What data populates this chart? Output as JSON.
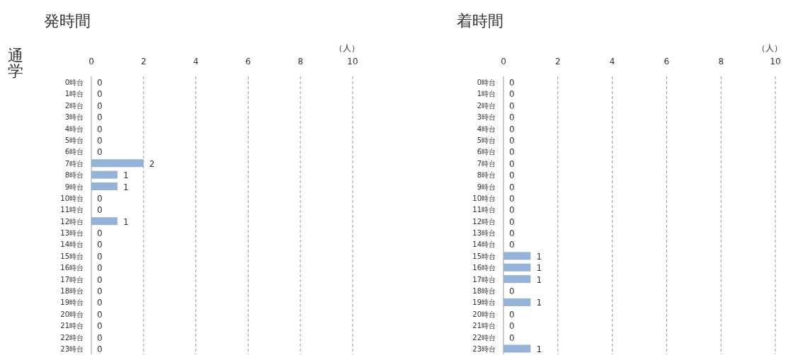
{
  "chart_data": [
    {
      "type": "bar",
      "orientation": "horizontal",
      "title": "発時間",
      "ylabel": "通学",
      "xlabel": "（人）",
      "categories": [
        "0時台",
        "1時台",
        "2時台",
        "3時台",
        "4時台",
        "5時台",
        "6時台",
        "7時台",
        "8時台",
        "9時台",
        "10時台",
        "11時台",
        "12時台",
        "13時台",
        "14時台",
        "15時台",
        "16時台",
        "17時台",
        "18時台",
        "19時台",
        "20時台",
        "21時台",
        "22時台",
        "23時台"
      ],
      "values": [
        0,
        0,
        0,
        0,
        0,
        0,
        0,
        2,
        1,
        1,
        0,
        0,
        1,
        0,
        0,
        0,
        0,
        0,
        0,
        0,
        0,
        0,
        0,
        0
      ],
      "color": "#95b3d7",
      "xlim": [
        0,
        10
      ],
      "xticks": [
        0,
        2,
        4,
        6,
        8,
        10
      ],
      "grid": "x",
      "data_labels": true
    },
    {
      "type": "bar",
      "orientation": "horizontal",
      "title": "着時間",
      "xlabel": "（人）",
      "categories": [
        "0時台",
        "1時台",
        "2時台",
        "3時台",
        "4時台",
        "5時台",
        "6時台",
        "7時台",
        "8時台",
        "9時台",
        "10時台",
        "11時台",
        "12時台",
        "13時台",
        "14時台",
        "15時台",
        "16時台",
        "17時台",
        "18時台",
        "19時台",
        "20時台",
        "21時台",
        "22時台",
        "23時台"
      ],
      "values": [
        0,
        0,
        0,
        0,
        0,
        0,
        0,
        0,
        0,
        0,
        0,
        0,
        0,
        0,
        0,
        1,
        1,
        1,
        0,
        1,
        0,
        0,
        0,
        1
      ],
      "color": "#95b3d7",
      "xlim": [
        0,
        10
      ],
      "xticks": [
        0,
        2,
        4,
        6,
        8,
        10
      ],
      "grid": "x",
      "data_labels": true
    }
  ]
}
